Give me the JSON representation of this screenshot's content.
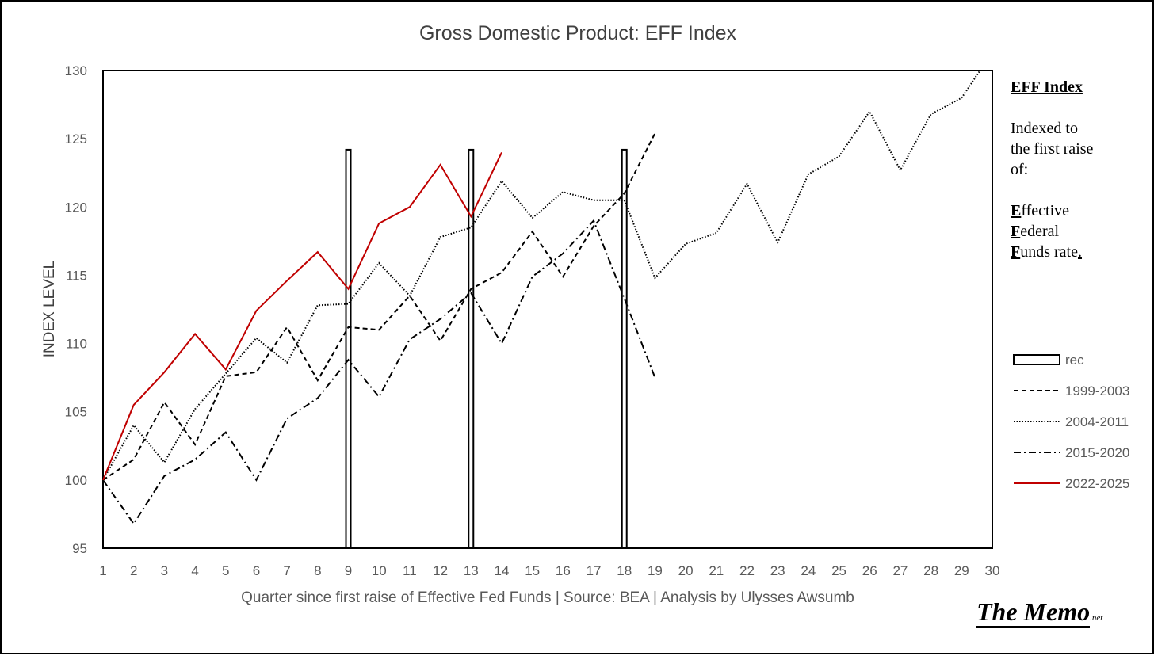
{
  "chart_data": {
    "type": "line",
    "title": "Gross Domestic Product: EFF Index",
    "xlabel": "Quarter since first raise of Effective Fed Funds | Source: BEA | Analysis by Ulysses Awsumb",
    "ylabel": "INDEX LEVEL",
    "ylim": [
      95,
      130
    ],
    "xlim": [
      1,
      30
    ],
    "yticks": [
      "95",
      "100",
      "105",
      "110",
      "115",
      "120",
      "125",
      "130"
    ],
    "xticks": [
      "1",
      "2",
      "3",
      "4",
      "5",
      "6",
      "7",
      "8",
      "9",
      "10",
      "11",
      "12",
      "13",
      "14",
      "15",
      "16",
      "17",
      "18",
      "19",
      "20",
      "21",
      "22",
      "23",
      "24",
      "25",
      "26",
      "27",
      "28",
      "29",
      "30"
    ],
    "recessions": [
      9,
      13,
      18
    ],
    "recession_top": 124.2,
    "series": [
      {
        "name": "rec",
        "style": "bar",
        "color": "#000000"
      },
      {
        "name": "1999-2003",
        "style": "dashed",
        "color": "#000000",
        "x": [
          1,
          2,
          3,
          4,
          5,
          6,
          7,
          8,
          9,
          10,
          11,
          12,
          13,
          14,
          15,
          16,
          17,
          18,
          19
        ],
        "y": [
          100,
          101.5,
          105.7,
          102.6,
          107.6,
          107.9,
          111.2,
          107.3,
          111.2,
          111,
          113.5,
          110.2,
          114,
          115.2,
          118.2,
          114.9,
          118.6,
          121,
          125.4
        ]
      },
      {
        "name": "2004-2011",
        "style": "dotted",
        "color": "#000000",
        "x": [
          1,
          2,
          3,
          4,
          5,
          6,
          7,
          8,
          9,
          10,
          11,
          12,
          13,
          14,
          15,
          16,
          17,
          18,
          19,
          20,
          21,
          22,
          23,
          24,
          25,
          26,
          27,
          28,
          29,
          29.6
        ],
        "y": [
          100,
          104,
          101.3,
          105.2,
          107.8,
          110.4,
          108.6,
          112.8,
          112.9,
          115.9,
          113.5,
          117.8,
          118.5,
          121.9,
          119.2,
          121.1,
          120.5,
          120.5,
          114.8,
          117.3,
          118.1,
          121.7,
          117.4,
          122.4,
          123.7,
          127,
          122.7,
          126.8,
          128,
          130
        ]
      },
      {
        "name": "2015-2020",
        "style": "dashdot",
        "color": "#000000",
        "x": [
          1,
          2,
          3,
          4,
          5,
          6,
          7,
          8,
          9,
          10,
          11,
          12,
          13,
          14,
          15,
          16,
          17,
          18,
          19
        ],
        "y": [
          100,
          96.8,
          100.3,
          101.5,
          103.5,
          100,
          104.5,
          106,
          108.8,
          106.1,
          110.3,
          111.8,
          113.7,
          110,
          114.9,
          116.6,
          119,
          113.3,
          107.5
        ]
      },
      {
        "name": "2022-2025",
        "style": "solid",
        "color": "#c00000",
        "x": [
          1,
          2,
          3,
          4,
          5,
          6,
          7,
          8,
          9,
          10,
          11,
          12,
          13,
          14
        ],
        "y": [
          100,
          105.5,
          107.9,
          110.7,
          108.1,
          112.4,
          114.6,
          116.7,
          114,
          118.8,
          120,
          123.1,
          119.3,
          124
        ]
      }
    ]
  },
  "side_note": {
    "title": "EFF Index",
    "lines": [
      "Indexed to",
      "the first raise",
      "of:"
    ],
    "acronym": [
      {
        "first": "E",
        "rest": "ffective"
      },
      {
        "first": "F",
        "rest": "ederal"
      },
      {
        "first": "F",
        "rest": "unds rate",
        "tail": "."
      }
    ]
  },
  "logo": {
    "main": "The Memo",
    "suffix": ".net"
  },
  "colors": {
    "axis": "#000000",
    "tick_text": "#595959",
    "title": "#404040",
    "red": "#c00000"
  }
}
